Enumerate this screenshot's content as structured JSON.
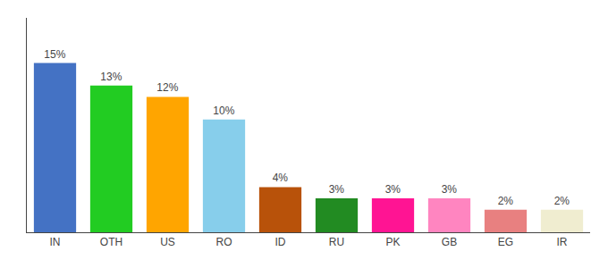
{
  "chart_data": {
    "type": "bar",
    "categories": [
      "IN",
      "OTH",
      "US",
      "RO",
      "ID",
      "RU",
      "PK",
      "GB",
      "EG",
      "IR"
    ],
    "values": [
      15,
      13,
      12,
      10,
      4,
      3,
      3,
      3,
      2,
      2
    ],
    "value_labels": [
      "15%",
      "13%",
      "12%",
      "10%",
      "4%",
      "3%",
      "3%",
      "3%",
      "2%",
      "2%"
    ],
    "data_labels": true,
    "colors": [
      "#4472C4",
      "#22CC22",
      "#FFA500",
      "#87CEEB",
      "#B8520A",
      "#228B22",
      "#FF1493",
      "#FF85C0",
      "#E88080",
      "#F0EDD0"
    ],
    "ylim": [
      0,
      19
    ],
    "grid": false,
    "tick_labels": "x"
  }
}
